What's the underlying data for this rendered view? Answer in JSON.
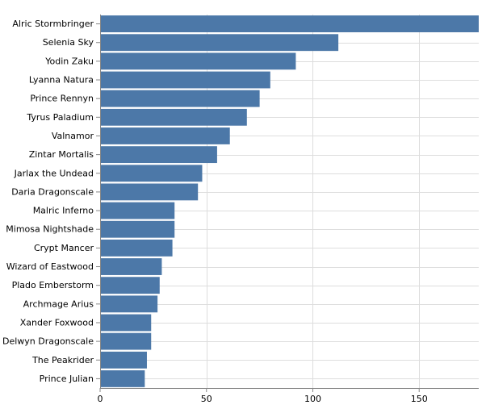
{
  "chart_data": {
    "type": "bar",
    "orientation": "horizontal",
    "categories": [
      "Alric Stormbringer",
      "Selenia Sky",
      "Yodin Zaku",
      "Lyanna Natura",
      "Prince Rennyn",
      "Tyrus Paladium",
      "Valnamor",
      "Zintar Mortalis",
      "Jarlax the Undead",
      "Daria Dragonscale",
      "Malric Inferno",
      "Mimosa Nightshade",
      "Crypt Mancer",
      "Wizard of Eastwood",
      "Plado Emberstorm",
      "Archmage Arius",
      "Xander Foxwood",
      "Delwyn Dragonscale",
      "The Peakrider",
      "Prince Julian"
    ],
    "values": [
      178,
      112,
      92,
      80,
      75,
      69,
      61,
      55,
      48,
      46,
      35,
      35,
      34,
      29,
      28,
      27,
      24,
      24,
      22,
      21
    ],
    "xlim": [
      0,
      178
    ],
    "xticks": [
      0,
      50,
      100,
      150
    ],
    "grid": true,
    "bar_color": "#4c78a8",
    "title": "",
    "xlabel": "",
    "ylabel": ""
  }
}
